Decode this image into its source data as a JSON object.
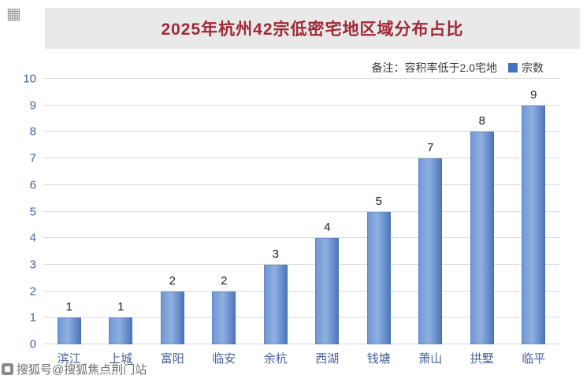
{
  "header": {
    "title": "2025年杭州42宗低密宅地区域分布占比"
  },
  "note": {
    "prefix": "备注：容积率低于2.0宅地",
    "legend_label": "宗数",
    "legend_color": "#4472c4"
  },
  "watermark": {
    "bottom_text": "搜狐号@搜狐焦点荆门站"
  },
  "colors": {
    "title_text": "#a02837",
    "header_background": "#e9e9e9",
    "bar_fill": "#4f7ec2",
    "axis_text": "#46619b",
    "gridline": "#d9d9d9"
  },
  "chart_data": {
    "type": "bar",
    "title": "2025年杭州42宗低密宅地区域分布占比",
    "note": "备注：容积率低于2.0宅地",
    "legend": [
      "宗数"
    ],
    "legend_position": "top-right",
    "categories": [
      "滨江",
      "上城",
      "富阳",
      "临安",
      "余杭",
      "西湖",
      "钱塘",
      "萧山",
      "拱墅",
      "临平"
    ],
    "values": [
      1,
      1,
      2,
      2,
      3,
      4,
      5,
      7,
      8,
      9
    ],
    "xlabel": "",
    "ylabel": "",
    "ylim": [
      0,
      10
    ],
    "ytick_step": 1,
    "grid": true,
    "data_labels": true
  }
}
